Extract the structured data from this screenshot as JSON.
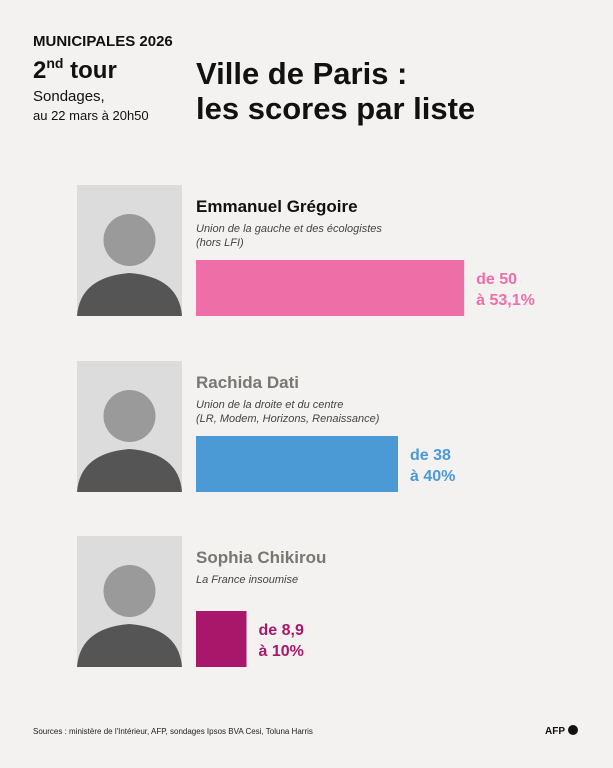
{
  "header": {
    "kicker": "MUNICIPALES",
    "year": "2026",
    "round_number": "2",
    "round_suffix": "nd",
    "round_word": "tour",
    "subtitle": "Sondages,",
    "date": "au 22 mars à 20h50",
    "title_lines": [
      "Ville de Paris :",
      "les scores par liste"
    ]
  },
  "chart_data": {
    "type": "bar",
    "orientation": "horizontal",
    "categories": [
      "Emmanuel Grégoire",
      "Rachida Dati",
      "Sophia Chikirou"
    ],
    "descriptions": [
      [
        "Union de la gauche et des écologistes",
        "(hors LFI)"
      ],
      [
        "Union de la droite et du centre",
        "(LR, Modem, Horizons, Renaissance)"
      ],
      [
        "La France insoumise"
      ]
    ],
    "values": [
      53.1,
      40,
      10
    ],
    "value_labels": [
      [
        "de 50",
        "à 53,1%"
      ],
      [
        "de 38",
        "à 40%"
      ],
      [
        "de 8,9",
        "à 10%"
      ]
    ],
    "colors": [
      "#ee6fa8",
      "#4b9ad6",
      "#a8176a"
    ]
  },
  "footer": {
    "source": "Sources : ministère de l'Intérieur, AFP, sondages Ipsos BVA Cesi, Toluna Harris",
    "logo": "AFP"
  }
}
